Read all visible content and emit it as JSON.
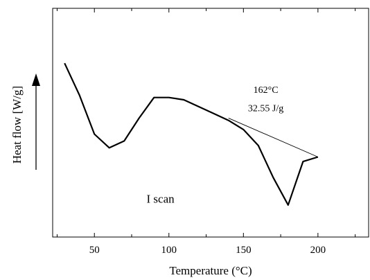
{
  "chart_data": {
    "type": "line",
    "xlabel": "Temperature (°C)",
    "ylabel": "Heat flow [W/g]",
    "xlim": [
      22,
      234
    ],
    "ylim": [
      0,
      100
    ],
    "xticks": [
      50,
      100,
      150,
      200
    ],
    "yticks_shown": false,
    "grid": false,
    "series": [
      {
        "x": [
          30,
          40,
          50,
          60,
          70,
          80,
          90,
          100,
          110,
          120,
          130,
          140,
          150,
          160,
          170,
          180,
          190,
          200
        ],
        "y": [
          76,
          62,
          45,
          39,
          42,
          52,
          61,
          61,
          60,
          57,
          54,
          51,
          47,
          40,
          26,
          14,
          33,
          35
        ]
      }
    ],
    "baseline": {
      "x": [
        140,
        200
      ],
      "y": [
        52,
        35
      ]
    },
    "annotations": [
      {
        "text": "162°C",
        "x": 165,
        "y": 63
      },
      {
        "text": "32.55 J/g",
        "x": 165,
        "y": 55
      }
    ],
    "scan_label": {
      "text": "I scan",
      "x": 85,
      "y": 15
    }
  }
}
